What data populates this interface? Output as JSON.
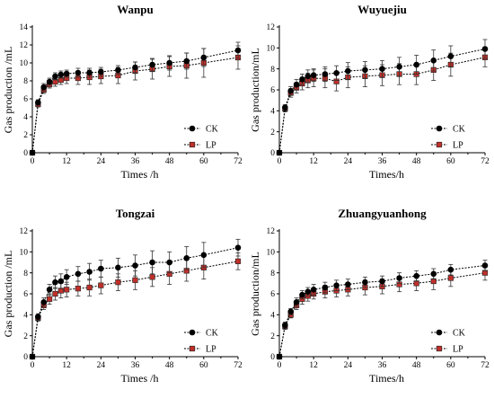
{
  "colors": {
    "CK": "#000000",
    "LP": "#c0302a"
  },
  "chart_data": [
    {
      "type": "line",
      "title": "Wanpu",
      "xlabel": "Times /h",
      "ylabel": "Gas production /mL",
      "xlim": [
        0,
        72
      ],
      "ylim": [
        0,
        14
      ],
      "xticks": [
        0,
        12,
        24,
        36,
        48,
        60,
        72
      ],
      "yticks": [
        0,
        2,
        4,
        6,
        8,
        10,
        12,
        14
      ],
      "legend": "bottom-right",
      "series": [
        {
          "name": "CK",
          "x": [
            0,
            2,
            4,
            6,
            8,
            10,
            12,
            16,
            20,
            24,
            30,
            36,
            42,
            48,
            54,
            60,
            72
          ],
          "y": [
            0,
            5.6,
            7.3,
            7.9,
            8.5,
            8.7,
            8.8,
            8.9,
            8.9,
            9.0,
            9.2,
            9.5,
            9.8,
            10.0,
            10.2,
            10.6,
            11.4
          ],
          "err": [
            0,
            0.3,
            0.4,
            0.4,
            0.4,
            0.4,
            0.4,
            0.5,
            0.5,
            0.5,
            0.5,
            0.6,
            0.7,
            0.8,
            0.9,
            1.0,
            0.9
          ]
        },
        {
          "name": "LP",
          "x": [
            0,
            2,
            4,
            6,
            8,
            10,
            12,
            16,
            20,
            24,
            30,
            36,
            42,
            48,
            54,
            60,
            72
          ],
          "y": [
            0,
            5.4,
            7.0,
            7.6,
            7.9,
            8.1,
            8.3,
            8.3,
            8.4,
            8.5,
            8.6,
            9.1,
            9.3,
            9.6,
            9.7,
            10.0,
            10.6
          ],
          "err": [
            0,
            0.3,
            0.4,
            0.4,
            0.5,
            0.5,
            0.6,
            0.7,
            0.8,
            0.8,
            0.9,
            1.0,
            1.1,
            1.1,
            1.4,
            1.6,
            1.3
          ]
        }
      ]
    },
    {
      "type": "line",
      "title": "Wuyuejiu",
      "xlabel": "Times/h",
      "ylabel": "Gas production/mL",
      "xlim": [
        0,
        72
      ],
      "ylim": [
        0,
        12
      ],
      "xticks": [
        0,
        12,
        24,
        36,
        48,
        60,
        72
      ],
      "yticks": [
        0,
        2,
        4,
        6,
        8,
        10,
        12
      ],
      "legend": "bottom-right",
      "series": [
        {
          "name": "CK",
          "x": [
            0,
            2,
            4,
            6,
            8,
            10,
            12,
            16,
            20,
            24,
            30,
            36,
            42,
            48,
            54,
            60,
            72
          ],
          "y": [
            0,
            4.3,
            5.9,
            6.5,
            7.0,
            7.3,
            7.4,
            7.5,
            7.6,
            7.8,
            7.9,
            8.0,
            8.2,
            8.4,
            8.8,
            9.2,
            9.9
          ],
          "err": [
            0,
            0.3,
            0.4,
            0.5,
            0.5,
            0.6,
            0.6,
            0.7,
            0.7,
            0.8,
            0.8,
            0.8,
            0.9,
            0.9,
            1.0,
            1.0,
            0.9
          ]
        },
        {
          "name": "LP",
          "x": [
            0,
            2,
            4,
            6,
            8,
            10,
            12,
            16,
            20,
            24,
            30,
            36,
            42,
            48,
            54,
            60,
            72
          ],
          "y": [
            0,
            4.2,
            5.7,
            6.2,
            6.6,
            6.9,
            7.1,
            7.1,
            6.8,
            7.2,
            7.3,
            7.4,
            7.5,
            7.5,
            7.9,
            8.4,
            9.1
          ],
          "err": [
            0,
            0.3,
            0.4,
            0.5,
            0.6,
            0.7,
            0.8,
            0.9,
            0.9,
            1.0,
            1.0,
            1.0,
            1.0,
            1.0,
            1.0,
            1.1,
            0.9
          ]
        }
      ]
    },
    {
      "type": "line",
      "title": "Tongzai",
      "xlabel": "Times /h",
      "ylabel": "Gas production /mL",
      "xlim": [
        0,
        72
      ],
      "ylim": [
        0,
        12
      ],
      "xticks": [
        0,
        12,
        24,
        36,
        48,
        60,
        72
      ],
      "yticks": [
        0,
        2,
        4,
        6,
        8,
        10,
        12
      ],
      "legend": "bottom-right",
      "series": [
        {
          "name": "CK",
          "x": [
            0,
            2,
            4,
            6,
            8,
            10,
            12,
            16,
            20,
            24,
            30,
            36,
            42,
            48,
            54,
            60,
            72
          ],
          "y": [
            0,
            3.8,
            5.2,
            6.4,
            7.1,
            7.2,
            7.6,
            7.9,
            8.1,
            8.4,
            8.5,
            8.7,
            9.0,
            9.0,
            9.4,
            9.7,
            10.4
          ],
          "err": [
            0,
            0.3,
            0.4,
            0.5,
            0.6,
            0.7,
            0.7,
            0.7,
            0.8,
            0.8,
            0.9,
            1.0,
            1.1,
            1.0,
            1.1,
            1.2,
            0.8
          ]
        },
        {
          "name": "LP",
          "x": [
            0,
            2,
            4,
            6,
            8,
            10,
            12,
            16,
            20,
            24,
            30,
            36,
            42,
            48,
            54,
            60,
            72
          ],
          "y": [
            0,
            3.7,
            4.9,
            5.5,
            6.0,
            6.3,
            6.4,
            6.5,
            6.6,
            6.8,
            7.1,
            7.3,
            7.6,
            7.9,
            8.2,
            8.5,
            9.1
          ],
          "err": [
            0,
            0.3,
            0.4,
            0.5,
            0.6,
            0.7,
            0.7,
            0.7,
            0.8,
            0.8,
            0.8,
            0.9,
            0.9,
            1.0,
            1.0,
            1.1,
            0.8
          ]
        }
      ]
    },
    {
      "type": "line",
      "title": "Zhuangyuanhong",
      "xlabel": "Times/h",
      "ylabel": "Gas production/mL",
      "xlim": [
        0,
        72
      ],
      "ylim": [
        0,
        12
      ],
      "xticks": [
        0,
        12,
        24,
        36,
        48,
        60,
        72
      ],
      "yticks": [
        0,
        2,
        4,
        6,
        8,
        10,
        12
      ],
      "legend": "bottom-right",
      "series": [
        {
          "name": "CK",
          "x": [
            0,
            2,
            4,
            6,
            8,
            10,
            12,
            16,
            20,
            24,
            30,
            36,
            42,
            48,
            54,
            60,
            72
          ],
          "y": [
            0,
            3.0,
            4.3,
            5.2,
            5.9,
            6.2,
            6.4,
            6.6,
            6.8,
            6.9,
            7.1,
            7.2,
            7.5,
            7.7,
            7.9,
            8.3,
            8.7
          ],
          "err": [
            0,
            0.3,
            0.3,
            0.4,
            0.4,
            0.4,
            0.5,
            0.5,
            0.5,
            0.5,
            0.5,
            0.5,
            0.5,
            0.5,
            0.5,
            0.5,
            0.5
          ]
        },
        {
          "name": "LP",
          "x": [
            0,
            2,
            4,
            6,
            8,
            10,
            12,
            16,
            20,
            24,
            30,
            36,
            42,
            48,
            54,
            60,
            72
          ],
          "y": [
            0,
            2.9,
            4.0,
            4.9,
            5.5,
            5.8,
            6.0,
            6.2,
            6.3,
            6.4,
            6.6,
            6.7,
            6.9,
            7.0,
            7.2,
            7.5,
            8.0
          ],
          "err": [
            0,
            0.3,
            0.3,
            0.4,
            0.5,
            0.5,
            0.5,
            0.6,
            0.6,
            0.6,
            0.7,
            0.7,
            0.7,
            0.7,
            0.8,
            0.8,
            0.7
          ]
        }
      ]
    }
  ]
}
